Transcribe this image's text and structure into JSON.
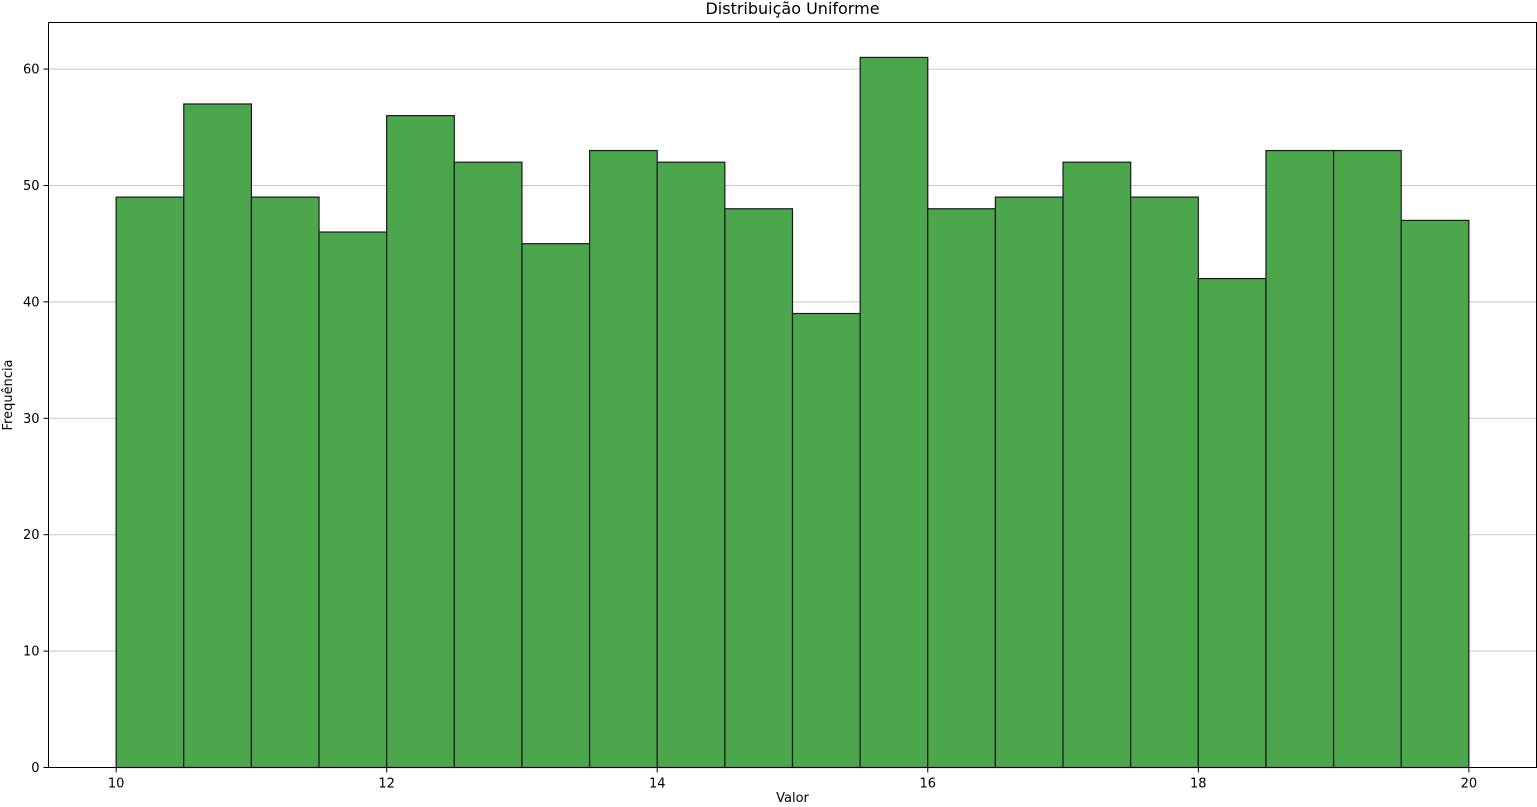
{
  "chart_data": {
    "type": "bar",
    "title": "Distribuição Uniforme",
    "xlabel": "Valor",
    "ylabel": "Frequência",
    "bin_edges": [
      10,
      10.5,
      11,
      11.5,
      12,
      12.5,
      13,
      13.5,
      14,
      14.5,
      15,
      15.5,
      16,
      16.5,
      17,
      17.5,
      18,
      18.5,
      19,
      19.5,
      20
    ],
    "values": [
      49,
      57,
      49,
      46,
      56,
      52,
      45,
      53,
      52,
      48,
      39,
      61,
      48,
      49,
      52,
      49,
      42,
      53,
      53,
      47
    ],
    "xlim": [
      9.5,
      20.5
    ],
    "ylim": [
      0,
      64
    ],
    "x_ticks": [
      10,
      12,
      14,
      16,
      18,
      20
    ],
    "y_ticks": [
      0,
      10,
      20,
      30,
      40,
      50,
      60
    ],
    "grid": "y-axis",
    "bar_color": "#4ca64c",
    "edge_color": "#1a1a1a",
    "grid_color": "#c8c8c8"
  }
}
